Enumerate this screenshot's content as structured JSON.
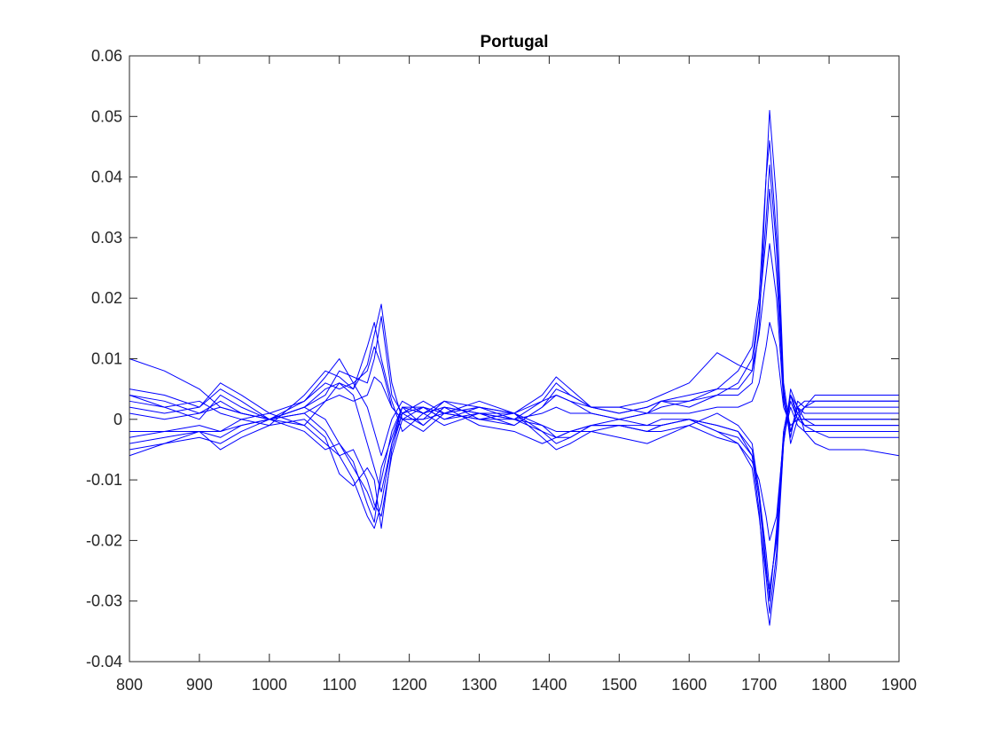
{
  "chart_data": {
    "type": "line",
    "title": "Portugal",
    "xlabel": "",
    "ylabel": "",
    "xlim": [
      800,
      1900
    ],
    "ylim": [
      -0.04,
      0.06
    ],
    "x_ticks": [
      800,
      900,
      1000,
      1100,
      1200,
      1300,
      1400,
      1500,
      1600,
      1700,
      1800,
      1900
    ],
    "x_tick_labels": [
      "800",
      "900",
      "1000",
      "1100",
      "1200",
      "1300",
      "1400",
      "1500",
      "1600",
      "1700",
      "1800",
      "1900"
    ],
    "y_ticks": [
      -0.04,
      -0.03,
      -0.02,
      -0.01,
      0,
      0.01,
      0.02,
      0.03,
      0.04,
      0.05,
      0.06
    ],
    "y_tick_labels": [
      "-0.04",
      "-0.03",
      "-0.02",
      "-0.01",
      "0",
      "0.01",
      "0.02",
      "0.03",
      "0.04",
      "0.05",
      "0.06"
    ],
    "grid": false,
    "line_color": "#0000ff",
    "series_x": [
      800,
      850,
      900,
      930,
      960,
      1000,
      1050,
      1080,
      1100,
      1120,
      1140,
      1150,
      1160,
      1175,
      1190,
      1220,
      1250,
      1300,
      1350,
      1390,
      1410,
      1430,
      1460,
      1500,
      1540,
      1560,
      1600,
      1640,
      1670,
      1690,
      1700,
      1710,
      1715,
      1725,
      1735,
      1745,
      1755,
      1765,
      1780,
      1800,
      1850,
      1900
    ],
    "series": [
      {
        "values": [
          0.01,
          0.008,
          0.005,
          0.002,
          0.001,
          0.0,
          -0.001,
          0.003,
          0.006,
          0.004,
          -0.004,
          -0.008,
          -0.012,
          -0.004,
          0.002,
          -0.001,
          0.002,
          -0.001,
          -0.002,
          -0.004,
          -0.003,
          -0.002,
          -0.002,
          -0.003,
          -0.004,
          -0.003,
          -0.001,
          0.001,
          -0.001,
          -0.004,
          -0.012,
          -0.022,
          -0.028,
          -0.02,
          -0.002,
          0.004,
          0.002,
          -0.002,
          -0.004,
          -0.005,
          -0.005,
          -0.006
        ]
      },
      {
        "values": [
          0.005,
          0.004,
          0.002,
          0.006,
          0.004,
          0.001,
          0.003,
          0.007,
          0.01,
          0.006,
          0.002,
          -0.002,
          -0.006,
          0.0,
          0.003,
          0.001,
          0.003,
          0.002,
          0.0,
          0.003,
          0.006,
          0.004,
          0.002,
          0.001,
          0.002,
          0.003,
          0.003,
          0.005,
          0.008,
          0.012,
          0.02,
          0.04,
          0.046,
          0.03,
          0.005,
          -0.004,
          0.0,
          0.002,
          0.004,
          0.004,
          0.004,
          0.004
        ]
      },
      {
        "values": [
          0.004,
          0.002,
          0.0,
          0.004,
          0.002,
          0.0,
          0.002,
          0.005,
          0.006,
          0.005,
          0.009,
          0.014,
          0.019,
          0.006,
          0.0,
          -0.002,
          0.001,
          0.0,
          -0.001,
          0.002,
          0.004,
          0.003,
          0.001,
          0.0,
          0.001,
          0.002,
          0.003,
          0.004,
          0.004,
          0.006,
          0.015,
          0.04,
          0.051,
          0.036,
          0.006,
          -0.002,
          0.002,
          0.003,
          0.003,
          0.003,
          0.003,
          0.003
        ]
      },
      {
        "values": [
          -0.005,
          -0.004,
          -0.003,
          -0.004,
          -0.002,
          0.0,
          0.001,
          -0.002,
          -0.006,
          -0.01,
          -0.016,
          -0.018,
          -0.014,
          -0.004,
          0.001,
          0.002,
          0.001,
          0.002,
          0.001,
          -0.002,
          -0.004,
          -0.003,
          -0.001,
          0.0,
          -0.001,
          -0.001,
          0.0,
          -0.002,
          -0.003,
          -0.006,
          -0.015,
          -0.03,
          -0.034,
          -0.024,
          -0.004,
          0.005,
          0.002,
          0.0,
          0.0,
          0.0,
          0.0,
          0.0
        ]
      },
      {
        "values": [
          -0.004,
          -0.003,
          -0.002,
          -0.003,
          -0.001,
          0.0,
          0.002,
          0.0,
          -0.004,
          -0.008,
          -0.012,
          -0.015,
          -0.01,
          -0.002,
          0.002,
          0.001,
          0.002,
          0.001,
          0.0,
          -0.001,
          -0.002,
          -0.002,
          -0.001,
          -0.001,
          -0.001,
          0.0,
          0.0,
          -0.001,
          -0.002,
          -0.005,
          -0.012,
          -0.024,
          -0.03,
          -0.018,
          -0.002,
          0.004,
          0.001,
          -0.001,
          -0.001,
          -0.001,
          -0.001,
          -0.001
        ]
      },
      {
        "values": [
          0.003,
          0.002,
          0.003,
          0.001,
          0.0,
          -0.001,
          0.004,
          0.008,
          0.007,
          0.005,
          0.012,
          0.016,
          0.01,
          0.003,
          -0.002,
          0.001,
          -0.001,
          0.001,
          0.001,
          0.004,
          0.007,
          0.005,
          0.002,
          0.002,
          0.003,
          0.004,
          0.006,
          0.011,
          0.009,
          0.008,
          0.018,
          0.033,
          0.042,
          0.028,
          0.004,
          -0.003,
          0.003,
          0.002,
          0.003,
          0.003,
          0.003,
          0.003
        ]
      },
      {
        "values": [
          -0.002,
          -0.002,
          -0.001,
          -0.002,
          0.0,
          0.001,
          -0.001,
          -0.004,
          -0.006,
          -0.005,
          -0.01,
          -0.014,
          -0.016,
          -0.006,
          0.0,
          0.002,
          0.0,
          0.002,
          0.001,
          -0.001,
          -0.003,
          -0.002,
          -0.001,
          -0.001,
          -0.002,
          -0.001,
          0.0,
          -0.002,
          -0.004,
          -0.008,
          -0.016,
          -0.026,
          -0.032,
          -0.022,
          -0.004,
          0.004,
          0.0,
          -0.001,
          -0.002,
          -0.003,
          -0.003,
          -0.003
        ]
      },
      {
        "values": [
          0.002,
          0.001,
          0.002,
          0.005,
          0.003,
          0.0,
          0.002,
          0.004,
          0.008,
          0.007,
          0.006,
          0.01,
          0.017,
          0.004,
          0.001,
          -0.001,
          0.002,
          0.001,
          -0.001,
          0.002,
          0.005,
          0.004,
          0.002,
          0.001,
          0.002,
          0.003,
          0.002,
          0.004,
          0.006,
          0.01,
          0.018,
          0.03,
          0.038,
          0.024,
          0.004,
          -0.002,
          0.001,
          0.002,
          0.002,
          0.002,
          0.002,
          0.002
        ]
      },
      {
        "values": [
          -0.006,
          -0.004,
          -0.002,
          -0.005,
          -0.003,
          -0.001,
          0.0,
          -0.003,
          -0.009,
          -0.011,
          -0.008,
          -0.01,
          -0.018,
          -0.005,
          0.001,
          0.003,
          0.001,
          0.003,
          0.001,
          -0.003,
          -0.005,
          -0.004,
          -0.002,
          -0.001,
          -0.002,
          -0.002,
          -0.001,
          -0.003,
          -0.004,
          -0.007,
          -0.01,
          -0.016,
          -0.02,
          -0.016,
          -0.003,
          0.002,
          -0.001,
          -0.002,
          -0.002,
          -0.002,
          -0.002,
          -0.002
        ]
      },
      {
        "values": [
          0.004,
          0.003,
          0.001,
          0.003,
          0.001,
          0.0,
          0.003,
          0.006,
          0.005,
          0.006,
          0.008,
          0.012,
          0.009,
          0.002,
          0.0,
          0.0,
          0.003,
          0.0,
          0.001,
          0.003,
          0.004,
          0.003,
          0.002,
          0.002,
          0.001,
          0.003,
          0.004,
          0.005,
          0.005,
          0.008,
          0.014,
          0.024,
          0.029,
          0.02,
          0.003,
          -0.002,
          0.002,
          0.001,
          0.001,
          0.001,
          0.001,
          0.001
        ]
      },
      {
        "values": [
          -0.003,
          -0.002,
          -0.002,
          -0.002,
          -0.001,
          0.0,
          -0.002,
          -0.005,
          -0.004,
          -0.007,
          -0.014,
          -0.017,
          -0.008,
          -0.003,
          0.002,
          0.002,
          0.0,
          0.001,
          0.0,
          -0.002,
          -0.003,
          -0.003,
          -0.001,
          -0.001,
          -0.002,
          -0.001,
          0.0,
          -0.001,
          -0.002,
          -0.006,
          -0.013,
          -0.025,
          -0.029,
          -0.019,
          -0.003,
          0.003,
          0.0,
          0.0,
          -0.001,
          -0.001,
          -0.001,
          -0.001
        ]
      },
      {
        "values": [
          0.001,
          0.0,
          0.001,
          0.002,
          0.001,
          0.0,
          0.001,
          0.003,
          0.004,
          0.003,
          0.004,
          0.007,
          0.006,
          0.002,
          0.0,
          0.0,
          0.001,
          0.0,
          0.0,
          0.001,
          0.002,
          0.001,
          0.001,
          0.0,
          0.001,
          0.001,
          0.001,
          0.002,
          0.002,
          0.003,
          0.006,
          0.012,
          0.016,
          0.012,
          0.002,
          -0.001,
          0.0,
          0.0,
          0.0,
          0.0,
          0.0,
          0.0
        ]
      }
    ]
  }
}
